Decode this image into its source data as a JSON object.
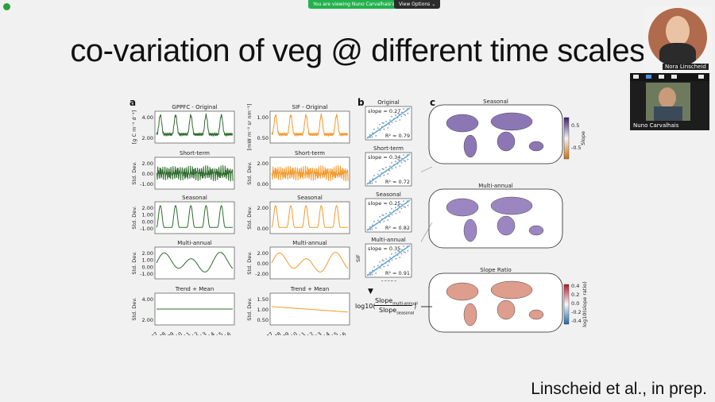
{
  "app": {
    "banner": "You are viewing Nuno Carvalhais's screen",
    "view_options": "View Options ⌄"
  },
  "slide": {
    "title": "co-variation of veg @ different time scales",
    "citation": "Linscheid et al., in prep.",
    "panel_a": "a",
    "panel_b": "b",
    "panel_c": "c"
  },
  "timeseries": {
    "gpp_titles": [
      "GPPFC - Original",
      "Short-term",
      "Seasonal",
      "Multi-annual",
      "Trend + Mean"
    ],
    "sif_titles": [
      "SIF - Original",
      "Short-term",
      "Seasonal",
      "Multi-annual",
      "Trend + Mean"
    ],
    "gpp_ylabels": [
      "[g C m⁻² d⁻¹]",
      "Std. Dev.",
      "Std. Dev.",
      "Std. Dev.",
      "Std. Dev."
    ],
    "sif_ylabels": [
      "[mW m⁻² sr nm⁻¹]",
      "Std. Dev.",
      "Std. Dev.",
      "Std. Dev.",
      "Std. Dev."
    ],
    "gpp_ticks": [
      [
        "4.00",
        "2.00"
      ],
      [
        "2.00",
        "0.00",
        "-1.00"
      ],
      [
        "2.00",
        "1.00",
        "0.00",
        "-1.00"
      ],
      [
        "2.00",
        "1.00",
        "0.00",
        "-1.00"
      ],
      [
        "4.00",
        "2.00"
      ]
    ],
    "sif_ticks": [
      [
        "1.00",
        "0.50"
      ],
      [
        "2.00",
        "0.00"
      ],
      [
        "2.00",
        "0.00"
      ],
      [
        "2.00",
        "0.00",
        "-2.00"
      ],
      [
        "1.50",
        "1.00",
        "0.50"
      ]
    ],
    "years": [
      "2007",
      "2008",
      "2009",
      "2010",
      "2011",
      "2012",
      "2013",
      "2014",
      "2015",
      "2016"
    ],
    "gpp_color": "#2e6b2e",
    "sif_color": "#f39a2e"
  },
  "scatter": {
    "titles": [
      "Original",
      "Short-term",
      "Seasonal",
      "Multi-annual"
    ],
    "slopes": [
      "slope = 0.27",
      "slope = 0.34",
      "slope = 0.25",
      "slope = 0.35"
    ],
    "r2": [
      "R² = 0.79",
      "R² = 0.72",
      "R² = 0.82",
      "R² = 0.91"
    ],
    "ylabel": "SIF",
    "xlabel": "GPPFC",
    "formula_prefix": "log10(",
    "formula_num": "Slope",
    "formula_num_sub": "multi-annual",
    "formula_den": "Slope",
    "formula_den_sub": "seasonal",
    "formula_suffix": ")"
  },
  "maps": {
    "titles": [
      "Seasonal",
      "Multi-annual",
      "Slope Ratio"
    ],
    "cbar1_label": "Slope",
    "cbar1_ticks": [
      "0.5",
      "-0.5"
    ],
    "cbar2_label": "log10(slope ratio)",
    "cbar2_ticks": [
      "0.4",
      "0.2",
      "0.0",
      "-0.2",
      "-0.4"
    ]
  },
  "participants": {
    "p1_name": "Nora Linscheid",
    "p2_name": "Nuno Carvalhais"
  }
}
